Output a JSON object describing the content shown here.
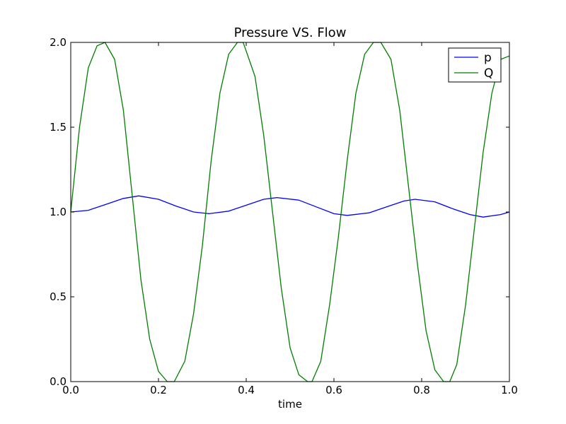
{
  "chart_data": {
    "type": "line",
    "title": "Pressure VS. Flow",
    "xlabel": "time",
    "ylabel": "",
    "xlim": [
      0.0,
      1.0
    ],
    "ylim": [
      0.0,
      2.0
    ],
    "xticks": [
      "0.0",
      "0.2",
      "0.4",
      "0.6",
      "0.8",
      "1.0"
    ],
    "yticks": [
      "0.0",
      "0.5",
      "1.0",
      "1.5",
      "2.0"
    ],
    "grid": false,
    "legend_position": "top-right",
    "series": [
      {
        "name": "p",
        "color": "#0000ff",
        "x": [
          0.0,
          0.04,
          0.08,
          0.12,
          0.155,
          0.2,
          0.24,
          0.28,
          0.315,
          0.36,
          0.4,
          0.44,
          0.47,
          0.52,
          0.56,
          0.6,
          0.63,
          0.68,
          0.72,
          0.76,
          0.785,
          0.83,
          0.87,
          0.91,
          0.94,
          0.98,
          1.0
        ],
        "values": [
          1.0,
          1.01,
          1.045,
          1.08,
          1.095,
          1.075,
          1.035,
          1.0,
          0.99,
          1.005,
          1.04,
          1.075,
          1.085,
          1.07,
          1.03,
          0.99,
          0.98,
          0.995,
          1.03,
          1.065,
          1.075,
          1.06,
          1.02,
          0.985,
          0.97,
          0.985,
          1.0
        ]
      },
      {
        "name": "Q",
        "color": "#007f00",
        "x": [
          0.0,
          0.02,
          0.04,
          0.06,
          0.078,
          0.1,
          0.12,
          0.14,
          0.16,
          0.18,
          0.2,
          0.22,
          0.236,
          0.26,
          0.28,
          0.3,
          0.32,
          0.34,
          0.36,
          0.38,
          0.393,
          0.42,
          0.44,
          0.46,
          0.48,
          0.5,
          0.52,
          0.54,
          0.55,
          0.57,
          0.59,
          0.61,
          0.63,
          0.65,
          0.67,
          0.69,
          0.707,
          0.73,
          0.75,
          0.77,
          0.79,
          0.81,
          0.83,
          0.85,
          0.864,
          0.88,
          0.9,
          0.92,
          0.94,
          0.96,
          0.98,
          1.0
        ],
        "values": [
          1.0,
          1.5,
          1.85,
          1.98,
          2.0,
          1.9,
          1.6,
          1.1,
          0.6,
          0.25,
          0.06,
          0.0,
          0.0,
          0.12,
          0.4,
          0.8,
          1.3,
          1.7,
          1.93,
          2.0,
          2.0,
          1.8,
          1.45,
          1.0,
          0.55,
          0.2,
          0.04,
          0.0,
          0.0,
          0.12,
          0.45,
          0.85,
          1.3,
          1.7,
          1.93,
          2.0,
          2.0,
          1.9,
          1.6,
          1.15,
          0.7,
          0.3,
          0.07,
          0.0,
          0.0,
          0.1,
          0.45,
          0.9,
          1.35,
          1.7,
          1.9,
          1.92
        ]
      }
    ]
  }
}
